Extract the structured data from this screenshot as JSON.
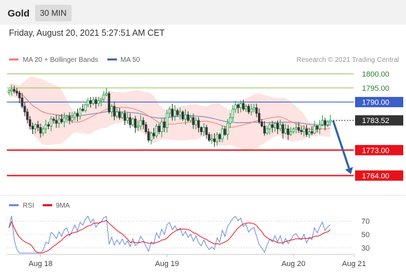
{
  "header": {
    "title": "Gold",
    "timeframe": "30 MIN"
  },
  "timestamp": "Friday, August 20, 2021 5:27:51 AM CET",
  "legend": {
    "ma20": "MA 20 + Bollinger Bands",
    "ma50": "MA 50",
    "credit": "Research © 2021 Trading Central"
  },
  "colors": {
    "up": "#15a245",
    "down": "#333333",
    "ma20": "#f2837e",
    "ma50": "#4b6aa8",
    "band": "#fde0de",
    "resistance_green": "#8bc34a",
    "pivot_blue": "#3b5ec8",
    "support_red": "#e8131a",
    "arrow": "#2f62a8",
    "rsi": "#6f8de0",
    "rsi_ma": "#e8131a"
  },
  "chart_data": [
    {
      "type": "candlestick",
      "title": "",
      "ylim": [
        1758,
        1803
      ],
      "current_price": {
        "label": "1783.52",
        "value": 1783.52
      },
      "levels": [
        {
          "label": "1800.00",
          "value": 1800.0,
          "kind": "resistance"
        },
        {
          "label": "1795.00",
          "value": 1795.0,
          "kind": "resistance"
        },
        {
          "label": "1790.00",
          "value": 1790.0,
          "kind": "pivot"
        },
        {
          "label": "1773.00",
          "value": 1773.0,
          "kind": "support"
        },
        {
          "label": "1764.00",
          "value": 1764.0,
          "kind": "support"
        }
      ],
      "forecast_arrow": {
        "from": 1783.5,
        "to": 1764.0
      },
      "x_ticks": [
        {
          "label": "Aug 18",
          "index": 12
        },
        {
          "label": "Aug 19",
          "index": 60
        },
        {
          "label": "Aug 20",
          "index": 108
        },
        {
          "label": "Aug 21",
          "index": 131
        }
      ],
      "closes": [
        1794.0,
        1794.5,
        1793.8,
        1793.2,
        1791.5,
        1788.5,
        1786.5,
        1783.8,
        1781.5,
        1780.5,
        1782.0,
        1781.0,
        1779.0,
        1780.5,
        1782.0,
        1781.5,
        1784.0,
        1783.5,
        1782.5,
        1784.0,
        1783.0,
        1784.5,
        1785.0,
        1783.5,
        1784.5,
        1786.0,
        1785.0,
        1787.5,
        1787.0,
        1789.0,
        1790.5,
        1789.5,
        1790.8,
        1789.5,
        1790.5,
        1791.0,
        1792.5,
        1793.0,
        1786.5,
        1788.5,
        1785.0,
        1786.5,
        1784.5,
        1786.0,
        1783.5,
        1784.5,
        1782.0,
        1784.0,
        1781.0,
        1781.5,
        1783.5,
        1782.0,
        1779.5,
        1776.5,
        1779.0,
        1778.0,
        1781.5,
        1779.5,
        1783.0,
        1781.0,
        1786.0,
        1787.5,
        1785.0,
        1787.0,
        1785.5,
        1786.5,
        1784.0,
        1785.5,
        1783.5,
        1784.5,
        1782.0,
        1783.5,
        1781.0,
        1779.5,
        1781.0,
        1778.5,
        1776.5,
        1777.0,
        1776.0,
        1778.5,
        1777.0,
        1780.5,
        1778.5,
        1782.5,
        1784.5,
        1787.5,
        1789.0,
        1788.0,
        1789.5,
        1787.5,
        1788.5,
        1786.5,
        1787.5,
        1788.0,
        1786.0,
        1783.0,
        1781.5,
        1779.0,
        1780.5,
        1782.0,
        1781.0,
        1782.5,
        1780.5,
        1782.0,
        1779.0,
        1780.5,
        1778.5,
        1779.5,
        1780.5,
        1781.0,
        1780.0,
        1779.5,
        1780.5,
        1778.5,
        1779.5,
        1779.0,
        1781.5,
        1780.5,
        1782.0,
        1783.5,
        1782.0,
        1783.0,
        1783.52
      ]
    },
    {
      "type": "line",
      "title": "",
      "series": [
        {
          "name": "RSI"
        },
        {
          "name": "9MA"
        }
      ],
      "ylim": [
        20,
        80
      ],
      "y_ticks": [
        "70",
        "50",
        "30"
      ]
    }
  ]
}
